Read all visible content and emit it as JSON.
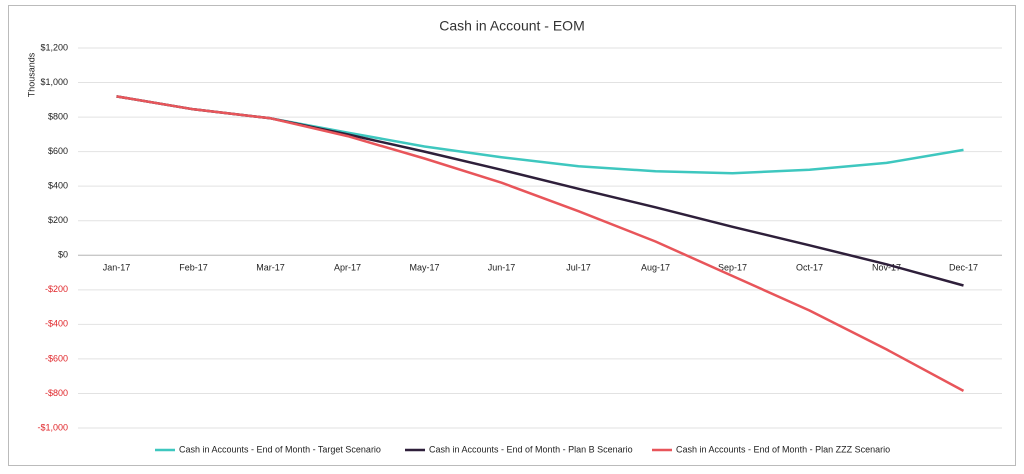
{
  "chart_data": {
    "type": "line",
    "title": "Cash in Account - EOM",
    "y_label": "Thousands",
    "categories": [
      "Jan-17",
      "Feb-17",
      "Mar-17",
      "Apr-17",
      "May-17",
      "Jun-17",
      "Jul-17",
      "Aug-17",
      "Sep-17",
      "Oct-17",
      "Nov-17",
      "Dec-17"
    ],
    "series": [
      {
        "name": "Cash in Accounts - End of Month - Target Scenario",
        "color": "#3ec7bf",
        "values": [
          920,
          845,
          793,
          710,
          630,
          568,
          515,
          487,
          475,
          495,
          535,
          610
        ]
      },
      {
        "name": "Cash in Accounts - End of Month - Plan B Scenario",
        "color": "#2e1f3a",
        "values": [
          920,
          845,
          793,
          700,
          600,
          495,
          385,
          278,
          165,
          58,
          -52,
          -175
        ]
      },
      {
        "name": "Cash in Accounts - End of Month - Plan ZZZ Scenario",
        "color": "#e8555a",
        "values": [
          920,
          845,
          793,
          690,
          560,
          420,
          255,
          80,
          -120,
          -320,
          -545,
          -785
        ]
      }
    ],
    "ylim": [
      -1000,
      1200
    ],
    "yticks": [
      {
        "value": -1000,
        "label": "-$1,000"
      },
      {
        "value": -800,
        "label": "-$800"
      },
      {
        "value": -600,
        "label": "-$600"
      },
      {
        "value": -400,
        "label": "-$400"
      },
      {
        "value": -200,
        "label": "-$200"
      },
      {
        "value": 0,
        "label": "$0"
      },
      {
        "value": 200,
        "label": "$200"
      },
      {
        "value": 400,
        "label": "$400"
      },
      {
        "value": 600,
        "label": "$600"
      },
      {
        "value": 800,
        "label": "$800"
      },
      {
        "value": 1000,
        "label": "$1,000"
      },
      {
        "value": 1200,
        "label": "$1,200"
      }
    ],
    "grid": true,
    "legend": "bottom"
  }
}
